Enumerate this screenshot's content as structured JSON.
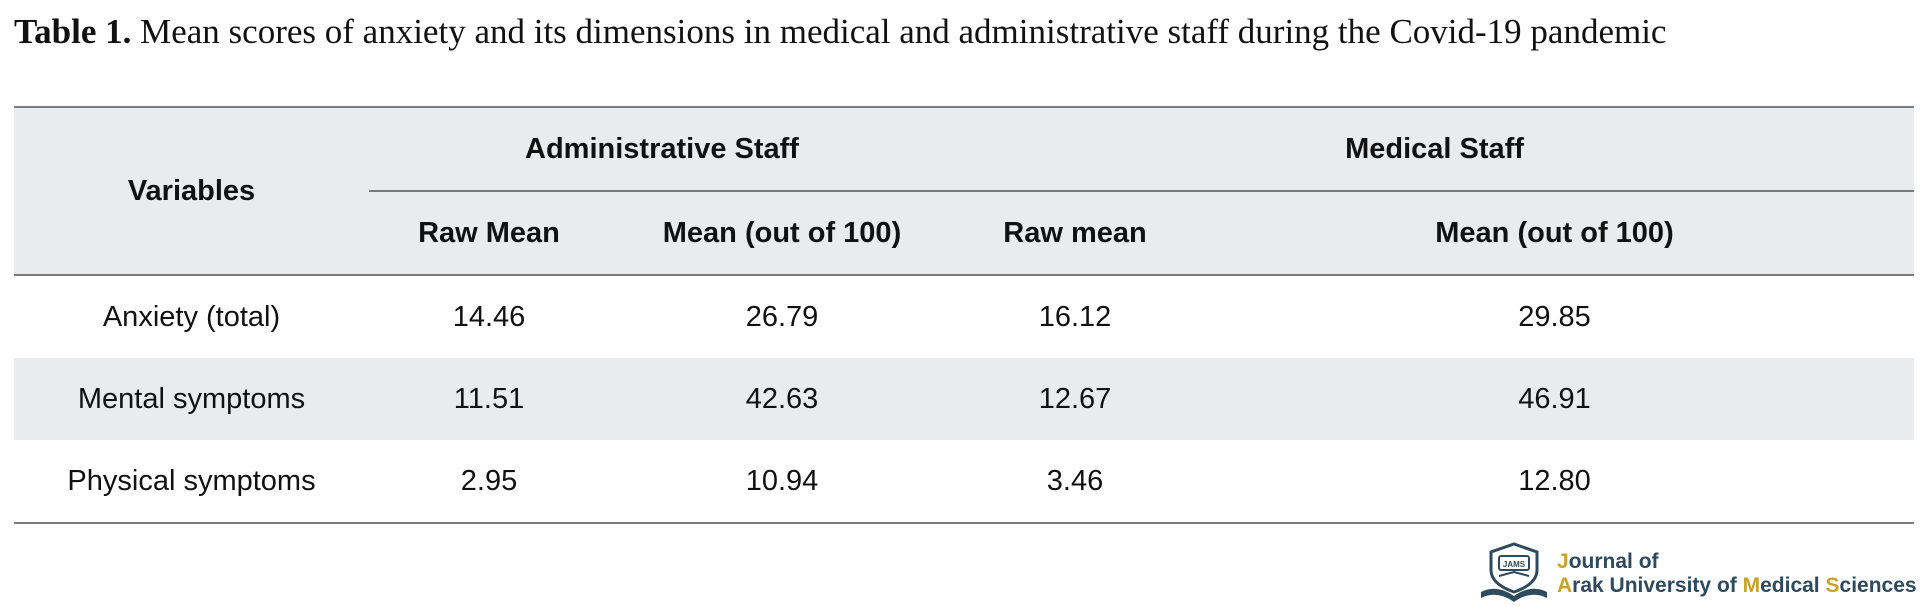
{
  "caption": {
    "label": "Table 1.",
    "text": "Mean scores of anxiety and its dimensions in medical and administrative staff during the Covid-19 pandemic"
  },
  "table": {
    "row_header": "Variables",
    "groups": [
      "Administrative Staff",
      "Medical Staff"
    ],
    "subheaders": [
      "Raw Mean",
      "Mean (out of 100)",
      "Raw mean",
      "Mean (out of 100)"
    ],
    "rows": [
      {
        "variable": "Anxiety (total)",
        "values": [
          "14.46",
          "26.79",
          "16.12",
          "29.85"
        ]
      },
      {
        "variable": "Mental symptoms",
        "values": [
          "11.51",
          "42.63",
          "12.67",
          "46.91"
        ]
      },
      {
        "variable": "Physical symptoms",
        "values": [
          "2.95",
          "10.94",
          "3.46",
          "12.80"
        ]
      }
    ]
  },
  "logo": {
    "line1": "Journal of",
    "line2": "Arak University of Medical Sciences",
    "emblem_text": "JAMS",
    "icon": "journal-emblem-icon",
    "colors": {
      "text": "#2e4a5e",
      "accent": "#c9a227"
    }
  }
}
